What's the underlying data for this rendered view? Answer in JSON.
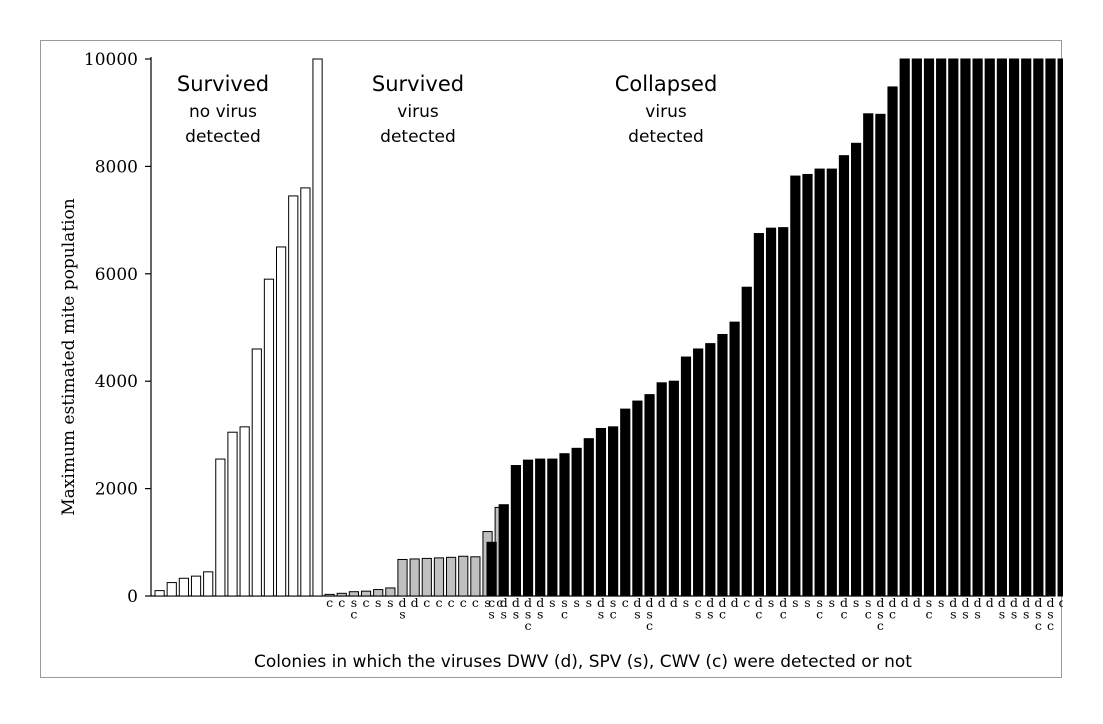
{
  "chart_data": {
    "type": "bar",
    "ylabel": "Maximum estimated mite population",
    "xlabel": "Colonies in which the viruses DWV (d), SPV (s), CWV (c) were detected or not",
    "ylim": [
      0,
      10000
    ],
    "yticks": [
      0,
      2000,
      4000,
      6000,
      8000,
      10000
    ],
    "colors": {
      "no_virus_fill": "#ffffff",
      "survived_virus_fill": "#c0c0c0",
      "collapsed_fill": "#000000",
      "bar_stroke": "#000000"
    },
    "groups": [
      {
        "name": "Survived, no virus detected",
        "heading": "Survived",
        "subheading": [
          "no virus",
          "detected"
        ],
        "fill": "no_virus_fill",
        "values": [
          100,
          250,
          330,
          370,
          450,
          2550,
          3050,
          3150,
          4600,
          5900,
          6500,
          7450,
          7600,
          10000
        ],
        "viruses": []
      },
      {
        "name": "Survived, virus detected",
        "heading": "Survived",
        "subheading": [
          "virus",
          "detected"
        ],
        "fill": "survived_virus_fill",
        "values": [
          30,
          50,
          80,
          90,
          120,
          150,
          680,
          690,
          700,
          710,
          720,
          740,
          730,
          1200,
          1650
        ],
        "viruses": [
          "c",
          "c",
          "sc",
          "c",
          "s",
          "s",
          "ds",
          "d",
          "c",
          "c",
          "c",
          "c",
          "c",
          "s",
          "c"
        ]
      },
      {
        "name": "Collapsed, virus detected",
        "heading": "Collapsed",
        "subheading": [
          "virus",
          "detected"
        ],
        "fill": "collapsed_fill",
        "values": [
          1000,
          1700,
          2430,
          2530,
          2550,
          2550,
          2650,
          2750,
          2930,
          3120,
          3150,
          3480,
          3630,
          3750,
          3970,
          4000,
          4450,
          4600,
          4700,
          4870,
          5100,
          5750,
          6750,
          6850,
          6860,
          7820,
          7850,
          7950,
          7950,
          8200,
          8430,
          8980,
          8970,
          9480,
          10000,
          10000,
          10000,
          10000,
          10000,
          10000,
          10000,
          10000,
          10000,
          10000,
          10000,
          10000,
          10000,
          10000,
          10000,
          10000
        ],
        "viruses": [
          "cs",
          "ds",
          "ds",
          "dsc",
          "ds",
          "s",
          "sc",
          "s",
          "s",
          "ds",
          "sc",
          "c",
          "ds",
          "dsc",
          "d",
          "d",
          "s",
          "cs",
          "ds",
          "dc",
          "d",
          "c",
          "dc",
          "s",
          "dc",
          "s",
          "s",
          "sc",
          "s",
          "dc",
          "s",
          "sc",
          "dsc",
          "dc",
          "d",
          "d",
          "sc",
          "s",
          "ds",
          "ds",
          "ds",
          "d",
          "ds",
          "ds",
          "ds",
          "dsc",
          "dsc",
          "d",
          "d",
          "d"
        ]
      }
    ]
  }
}
